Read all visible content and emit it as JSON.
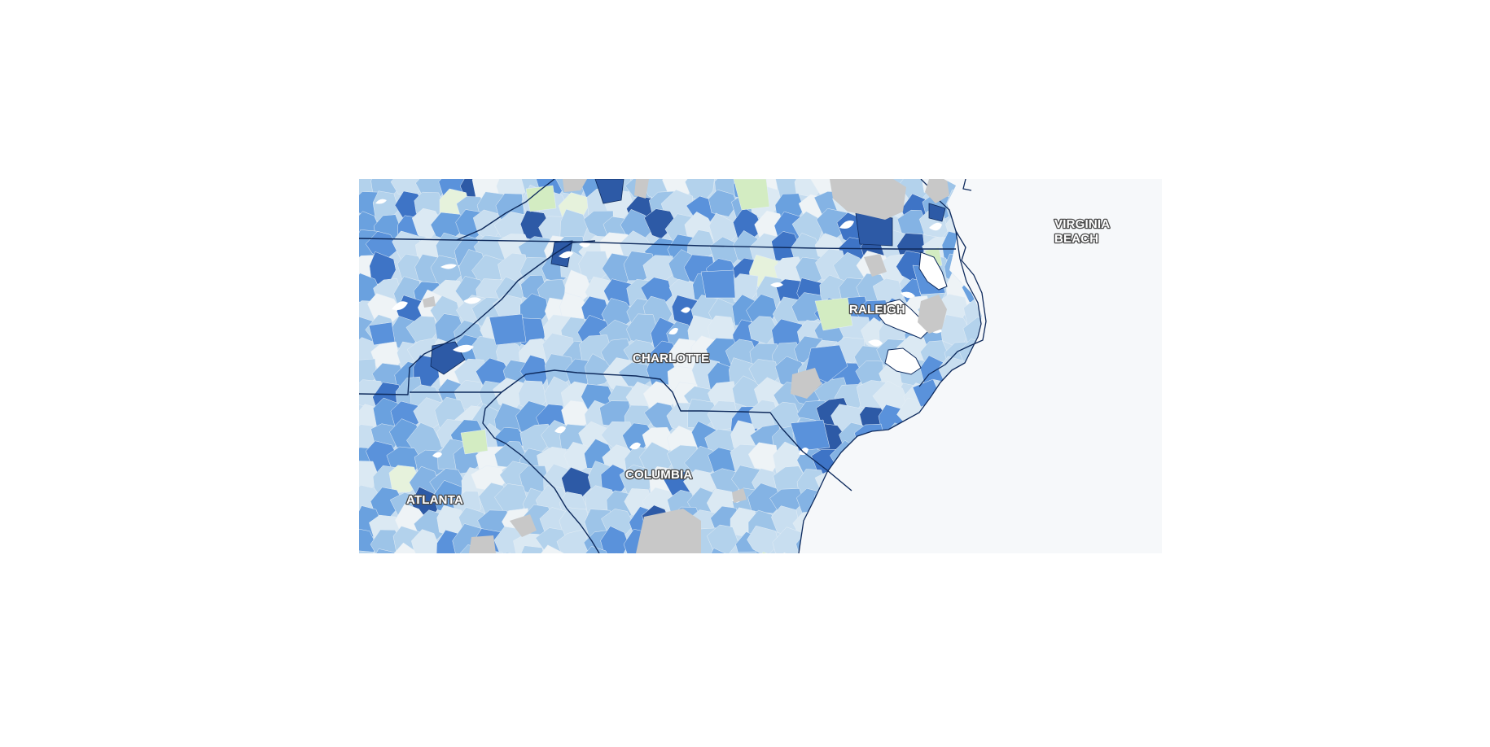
{
  "map": {
    "labels": {
      "virginia_beach_line1": "VIRGINIA",
      "virginia_beach_line2": "BEACH",
      "raleigh": "RALEIGH",
      "charlotte": "CHARLOTTE",
      "columbia": "COLUMBIA",
      "atlanta": "ATLANTA"
    },
    "colors": {
      "ocean": "#f6f8fa",
      "border": "#0e2a5c",
      "no_data": "#c8c8c8",
      "palette": [
        "#eef3f6",
        "#dbe9f3",
        "#c8def0",
        "#b3d2ec",
        "#9dc4e8",
        "#84b3e4",
        "#6aa1df",
        "#5a92db",
        "#3e74c6",
        "#2d5aa6",
        "#e6f2dc",
        "#d3ecc2"
      ]
    }
  }
}
